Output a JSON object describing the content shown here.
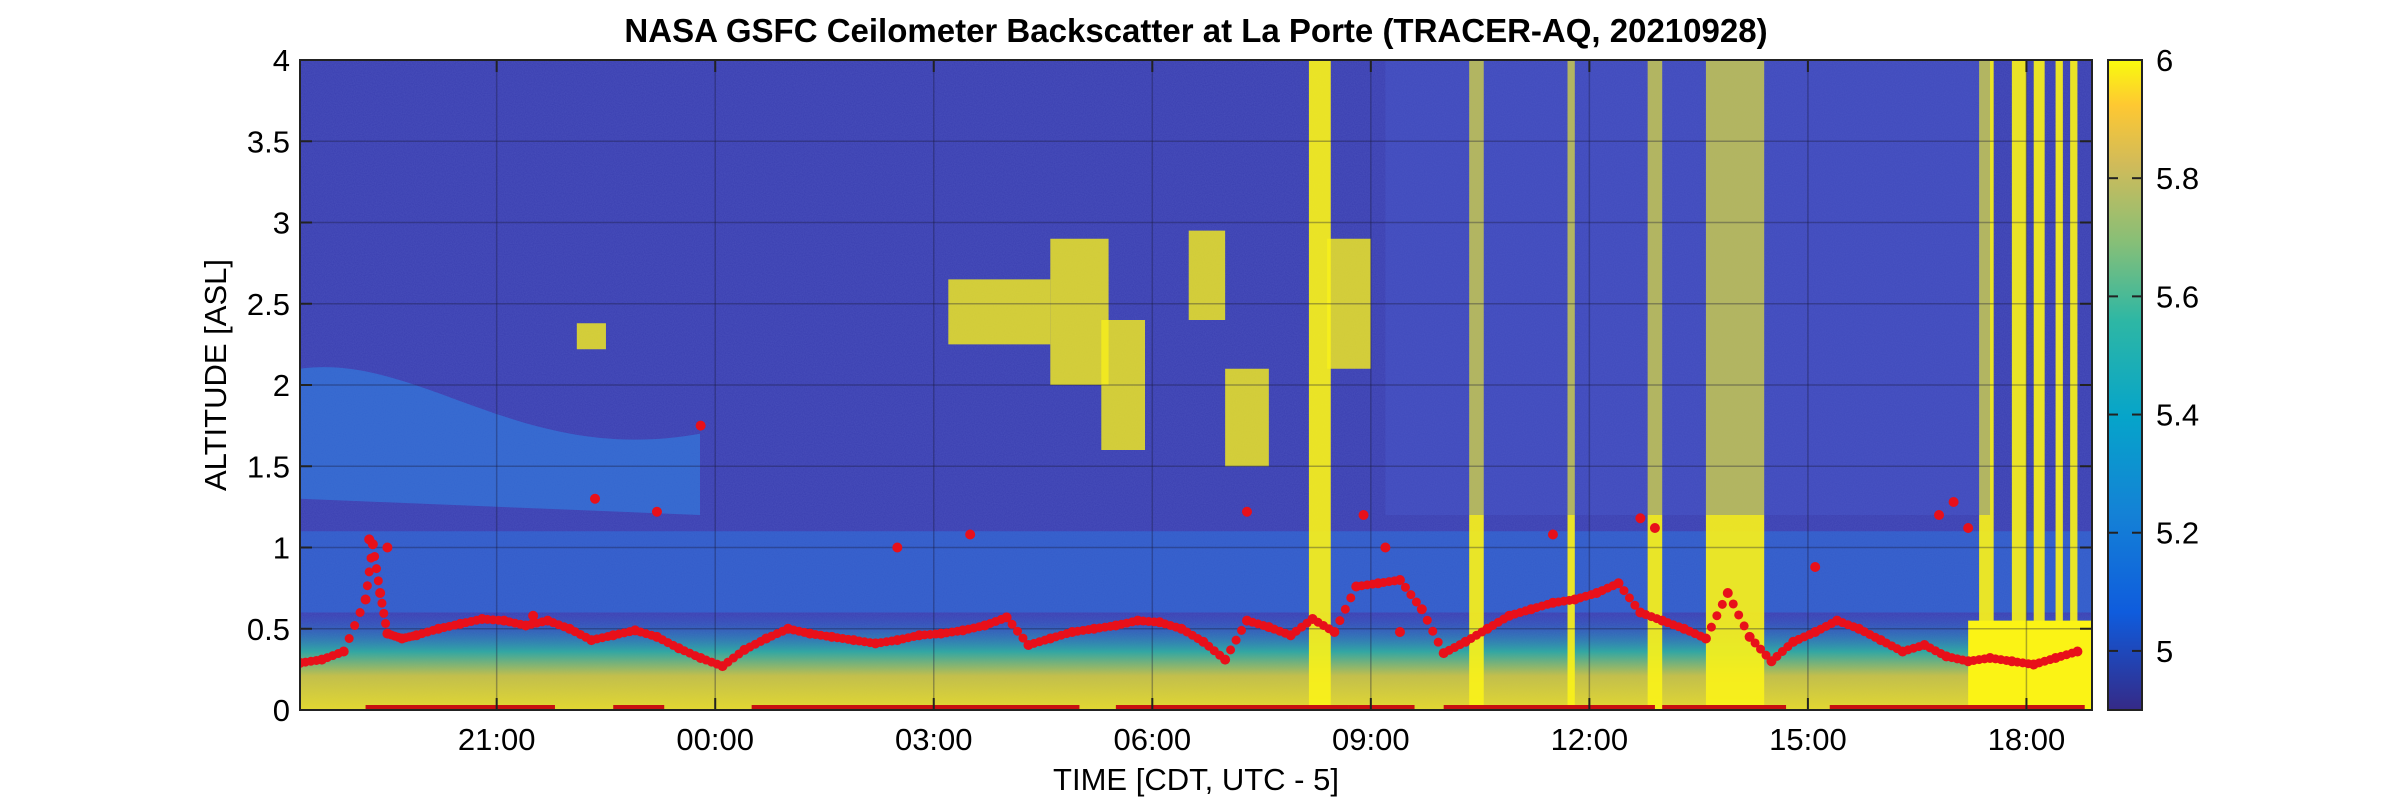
{
  "chart_data": {
    "type": "heatmap",
    "title": "NASA GSFC Ceilometer Backscatter at La Porte (TRACER-AQ, 20210928)",
    "xlabel": "TIME [CDT, UTC - 5]",
    "ylabel": "ALTITUDE [ASL]",
    "x_ticks": [
      "21:00",
      "00:00",
      "03:00",
      "06:00",
      "09:00",
      "12:00",
      "15:00",
      "18:00"
    ],
    "x_tick_hours": [
      21,
      24,
      27,
      30,
      33,
      36,
      39,
      42
    ],
    "xlim_hours": [
      18.3,
      42.9
    ],
    "ylim": [
      0,
      4
    ],
    "y_ticks": [
      0,
      0.5,
      1,
      1.5,
      2,
      2.5,
      3,
      3.5,
      4
    ],
    "y_tick_labels": [
      "0",
      "0.5",
      "1",
      "1.5",
      "2",
      "2.5",
      "3",
      "3.5",
      "4"
    ],
    "colorbar": {
      "clim": [
        4.9,
        6.0
      ],
      "ticks": [
        5,
        5.2,
        5.4,
        5.6,
        5.8,
        6
      ],
      "tick_labels": [
        "5",
        "5.2",
        "5.4",
        "5.6",
        "5.8",
        "6"
      ],
      "colormap": "parula"
    },
    "grid": true,
    "series": [
      {
        "marker_color": "#e8101a",
        "x_hours": [
          18.3,
          18.6,
          18.9,
          19.2,
          19.3,
          19.4,
          19.5,
          19.7,
          19.9,
          20.2,
          20.5,
          20.8,
          21.1,
          21.4,
          21.7,
          22.0,
          22.3,
          22.6,
          22.9,
          23.2,
          23.5,
          23.8,
          24.1,
          24.4,
          24.7,
          25.0,
          25.3,
          25.6,
          25.9,
          26.2,
          26.5,
          26.8,
          27.1,
          27.4,
          27.7,
          28.0,
          28.3,
          28.6,
          28.9,
          29.2,
          29.5,
          29.8,
          30.1,
          30.4,
          30.7,
          31.0,
          31.3,
          31.6,
          31.9,
          32.2,
          32.5,
          32.8,
          33.1,
          33.4,
          33.7,
          34.0,
          34.3,
          34.6,
          34.9,
          35.2,
          35.5,
          35.8,
          36.1,
          36.4,
          36.7,
          37.0,
          37.3,
          37.6,
          37.9,
          38.2,
          38.5,
          38.8,
          39.1,
          39.4,
          39.7,
          40.0,
          40.3,
          40.6,
          40.9,
          41.2,
          41.5,
          41.8,
          42.1,
          42.4,
          42.7
        ],
        "y_km": [
          0.29,
          0.31,
          0.36,
          0.68,
          1.02,
          0.72,
          0.47,
          0.44,
          0.46,
          0.5,
          0.53,
          0.56,
          0.55,
          0.52,
          0.55,
          0.5,
          0.43,
          0.46,
          0.49,
          0.45,
          0.38,
          0.32,
          0.27,
          0.37,
          0.44,
          0.5,
          0.47,
          0.45,
          0.43,
          0.41,
          0.43,
          0.46,
          0.47,
          0.49,
          0.52,
          0.57,
          0.4,
          0.44,
          0.48,
          0.5,
          0.52,
          0.55,
          0.54,
          0.5,
          0.42,
          0.31,
          0.55,
          0.51,
          0.46,
          0.56,
          0.48,
          0.76,
          0.78,
          0.8,
          0.62,
          0.35,
          0.42,
          0.5,
          0.58,
          0.62,
          0.66,
          0.68,
          0.72,
          0.78,
          0.6,
          0.55,
          0.5,
          0.44,
          0.72,
          0.45,
          0.3,
          0.42,
          0.48,
          0.55,
          0.5,
          0.43,
          0.36,
          0.4,
          0.33,
          0.3,
          0.32,
          0.3,
          0.28,
          0.32,
          0.36
        ],
        "scattered_points": [
          {
            "x_hours": 19.25,
            "y_km": 1.05
          },
          {
            "x_hours": 19.5,
            "y_km": 1.0
          },
          {
            "x_hours": 22.35,
            "y_km": 1.3
          },
          {
            "x_hours": 23.2,
            "y_km": 1.22
          },
          {
            "x_hours": 23.8,
            "y_km": 1.75
          },
          {
            "x_hours": 21.5,
            "y_km": 0.58
          },
          {
            "x_hours": 26.5,
            "y_km": 1.0
          },
          {
            "x_hours": 27.5,
            "y_km": 1.08
          },
          {
            "x_hours": 31.3,
            "y_km": 1.22
          },
          {
            "x_hours": 32.9,
            "y_km": 1.2
          },
          {
            "x_hours": 33.2,
            "y_km": 1.0
          },
          {
            "x_hours": 33.4,
            "y_km": 0.48
          },
          {
            "x_hours": 35.5,
            "y_km": 1.08
          },
          {
            "x_hours": 36.7,
            "y_km": 1.18
          },
          {
            "x_hours": 36.9,
            "y_km": 1.12
          },
          {
            "x_hours": 39.1,
            "y_km": 0.88
          },
          {
            "x_hours": 40.8,
            "y_km": 1.2
          },
          {
            "x_hours": 41.0,
            "y_km": 1.28
          },
          {
            "x_hours": 41.2,
            "y_km": 1.12
          }
        ],
        "zero_segments_hours": [
          [
            19.2,
            21.8
          ],
          [
            22.6,
            23.3
          ],
          [
            24.5,
            29.0
          ],
          [
            29.5,
            32.7
          ],
          [
            32.7,
            33.6
          ],
          [
            34.0,
            36.9
          ],
          [
            37.0,
            38.7
          ],
          [
            39.3,
            42.8
          ]
        ]
      }
    ]
  }
}
